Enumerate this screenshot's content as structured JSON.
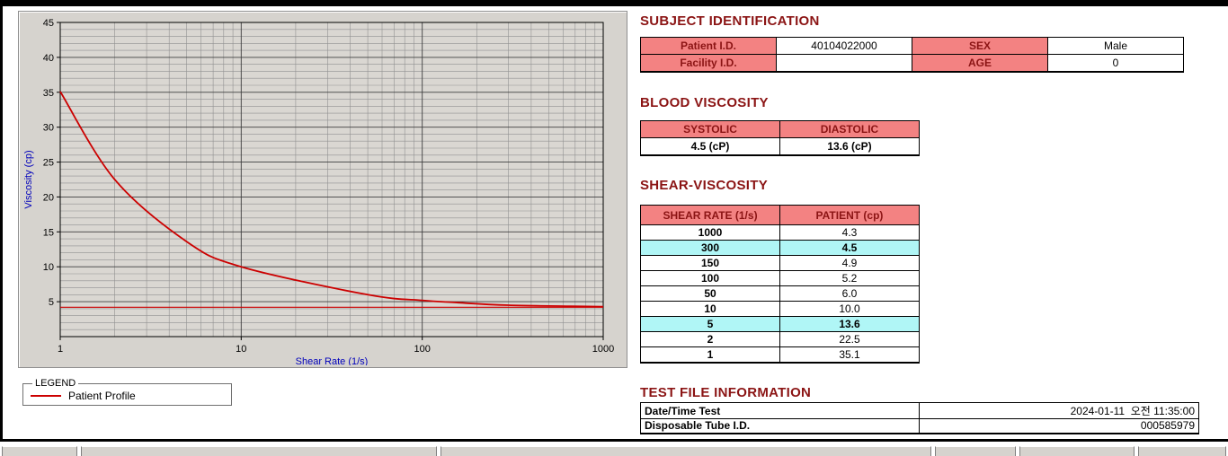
{
  "colors": {
    "section_header": "#8b1414",
    "table_header_bg": "#f38282",
    "highlight_bg": "#b0f6f6",
    "curve": "#cc0000",
    "axis_title": "#0000bb",
    "panel_bg": "#d6d3ce"
  },
  "subject": {
    "title": "SUBJECT IDENTIFICATION",
    "rows": [
      {
        "label1": "Patient I.D.",
        "value1": "40104022000",
        "label2": "SEX",
        "value2": "Male"
      },
      {
        "label1": "Facility I.D.",
        "value1": "",
        "label2": "AGE",
        "value2": "0"
      }
    ]
  },
  "blood_viscosity": {
    "title": "BLOOD VISCOSITY",
    "columns": [
      "SYSTOLIC",
      "DIASTOLIC"
    ],
    "values": [
      "4.5 (cP)",
      "13.6 (cP)"
    ]
  },
  "shear_viscosity": {
    "title": "SHEAR-VISCOSITY",
    "columns": [
      "SHEAR RATE (1/s)",
      "PATIENT (cp)"
    ],
    "rows": [
      {
        "rate": "1000",
        "value": "4.3",
        "highlight": false
      },
      {
        "rate": "300",
        "value": "4.5",
        "highlight": true
      },
      {
        "rate": "150",
        "value": "4.9",
        "highlight": false
      },
      {
        "rate": "100",
        "value": "5.2",
        "highlight": false
      },
      {
        "rate": "50",
        "value": "6.0",
        "highlight": false
      },
      {
        "rate": "10",
        "value": "10.0",
        "highlight": false
      },
      {
        "rate": "5",
        "value": "13.6",
        "highlight": true
      },
      {
        "rate": "2",
        "value": "22.5",
        "highlight": false
      },
      {
        "rate": "1",
        "value": "35.1",
        "highlight": false
      }
    ]
  },
  "test_file": {
    "title": "TEST FILE INFORMATION",
    "rows": [
      {
        "label": "Date/Time Test",
        "value": "2024-01-11  오전 11:35:00"
      },
      {
        "label": "Disposable Tube I.D.",
        "value": "000585979"
      }
    ]
  },
  "legend": {
    "title": "LEGEND",
    "series_label": "Patient Profile"
  },
  "chart_data": {
    "type": "line",
    "title": "",
    "xlabel": "Shear Rate (1/s)",
    "ylabel": "Viscosity (cp)",
    "x_scale": "log",
    "xlim": [
      1,
      1000
    ],
    "ylim": [
      0,
      45
    ],
    "x_ticks": [
      1,
      10,
      100,
      1000
    ],
    "y_ticks": [
      5,
      10,
      15,
      20,
      25,
      30,
      35,
      40,
      45
    ],
    "grid": "on",
    "legend_position": "external-bottom-left",
    "series": [
      {
        "name": "Patient Profile",
        "color": "#cc0000",
        "x": [
          1,
          2,
          5,
          10,
          50,
          100,
          150,
          300,
          1000
        ],
        "y": [
          35.1,
          22.5,
          13.6,
          10.0,
          6.0,
          5.2,
          4.9,
          4.5,
          4.3
        ]
      }
    ],
    "reference_line": {
      "y": 4.2,
      "color": "#cc0000"
    }
  }
}
